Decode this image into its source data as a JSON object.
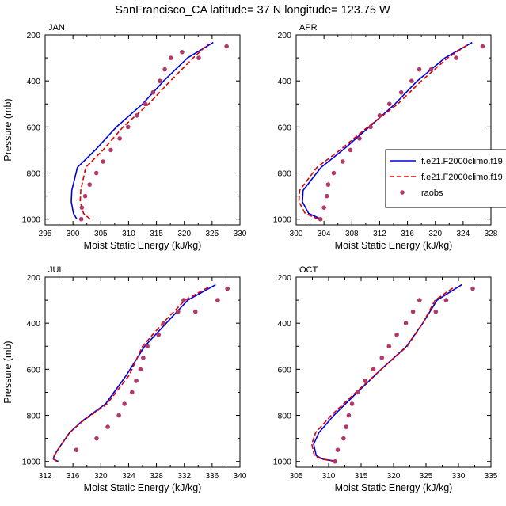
{
  "title": "SanFrancisco_CA  latitude= 37 N longitude= 123.75 W",
  "colors": {
    "model1": "#0000dd",
    "model2": "#dd0000",
    "raobs": "#b03a6a"
  },
  "legend": {
    "panel": 1,
    "placement": "right",
    "entries": [
      "f.e21.F2000climo.f19",
      "f.e21.F2000climo.f19",
      "raobs"
    ]
  },
  "chart_data": [
    {
      "type": "line",
      "panel_label": "JAN",
      "xlabel": "Moist Static Energy (kJ/kg)",
      "ylabel": "Pressure (mb)",
      "xlim": [
        295,
        330
      ],
      "xticks": [
        295,
        300,
        305,
        310,
        315,
        320,
        325,
        330
      ],
      "ylim": [
        1025,
        200
      ],
      "yticks": [
        200,
        400,
        600,
        800,
        1000
      ],
      "series": [
        {
          "style": "solid-blue",
          "x": [
            300.7,
            300.1,
            299.7,
            299.8,
            300.8,
            304.0,
            307.8,
            312.5,
            316.3,
            320.6,
            325.2
          ],
          "y": [
            1000,
            975,
            925,
            875,
            775,
            700,
            600,
            500,
            400,
            300,
            233
          ]
        },
        {
          "style": "dashed-red",
          "x": [
            303.1,
            301.9,
            301.3,
            301.4,
            302.3,
            305.4,
            309.0,
            313.6,
            317.5,
            321.6,
            324.3
          ],
          "y": [
            1000,
            975,
            925,
            875,
            775,
            700,
            600,
            500,
            400,
            300,
            240
          ]
        },
        {
          "style": "dots",
          "x": [
            301.5,
            301.6,
            302.2,
            303.0,
            304.2,
            305.4,
            306.8,
            308.4,
            309.9,
            311.5,
            313.0,
            314.4,
            315.6,
            316.5,
            317.6,
            319.6,
            322.6,
            327.6
          ],
          "y": [
            1000,
            950,
            900,
            850,
            800,
            750,
            700,
            650,
            600,
            550,
            500,
            450,
            400,
            350,
            300,
            275,
            300,
            250
          ]
        }
      ]
    },
    {
      "type": "line",
      "panel_label": "APR",
      "xlabel": "Moist Static Energy (kJ/kg)",
      "ylabel": "",
      "xlim": [
        300,
        328
      ],
      "xticks": [
        300,
        304,
        308,
        312,
        316,
        320,
        324,
        328
      ],
      "ylim": [
        1025,
        200
      ],
      "yticks": [
        200,
        400,
        600,
        800,
        1000
      ],
      "series": [
        {
          "style": "solid-blue",
          "x": [
            303.6,
            301.8,
            300.9,
            301.0,
            303.6,
            306.7,
            310.5,
            314.2,
            317.4,
            321.4,
            325.3
          ],
          "y": [
            1000,
            975,
            925,
            875,
            775,
            700,
            600,
            500,
            400,
            300,
            233
          ]
        },
        {
          "style": "dashed-red",
          "x": [
            303.2,
            301.3,
            300.4,
            300.5,
            303.0,
            306.3,
            310.3,
            314.6,
            318.0,
            321.8,
            324.8
          ],
          "y": [
            1000,
            975,
            925,
            875,
            775,
            700,
            600,
            500,
            400,
            300,
            240
          ]
        },
        {
          "style": "dots",
          "x": [
            303.5,
            304.0,
            304.4,
            304.6,
            305.4,
            306.7,
            307.8,
            309.1,
            310.7,
            312.0,
            313.4,
            315.1,
            316.6,
            317.7,
            319.4,
            323.0,
            326.8
          ],
          "y": [
            1000,
            950,
            900,
            850,
            800,
            750,
            700,
            650,
            600,
            550,
            500,
            450,
            400,
            350,
            350,
            300,
            250
          ]
        }
      ]
    },
    {
      "type": "line",
      "panel_label": "JUL",
      "xlabel": "Moist Static Energy (kJ/kg)",
      "ylabel": "Pressure (mb)",
      "xlim": [
        312,
        340
      ],
      "xticks": [
        312,
        316,
        320,
        324,
        328,
        332,
        336,
        340
      ],
      "ylim": [
        1025,
        200
      ],
      "yticks": [
        200,
        400,
        600,
        800,
        1000
      ],
      "series": [
        {
          "style": "solid-blue",
          "x": [
            313.9,
            313.2,
            313.3,
            313.8,
            315.5,
            317.3,
            320.7,
            323.7,
            326.3,
            329.4,
            332.5,
            336.5
          ],
          "y": [
            1000,
            990,
            975,
            950,
            875,
            825,
            750,
            625,
            500,
            400,
            300,
            233
          ]
        },
        {
          "style": "dashed-red",
          "x": [
            313.7,
            313.2,
            313.3,
            313.8,
            315.5,
            317.4,
            320.9,
            324.1,
            326.0,
            328.9,
            332.1,
            335.7
          ],
          "y": [
            1000,
            990,
            975,
            950,
            875,
            825,
            750,
            625,
            500,
            400,
            300,
            240
          ]
        },
        {
          "style": "dots",
          "x": [
            316.5,
            319.4,
            321.0,
            322.6,
            323.4,
            324.5,
            325.1,
            325.7,
            326.1,
            326.7,
            328.3,
            329.0,
            331.1,
            331.9,
            333.6,
            336.8,
            338.2
          ],
          "y": [
            950,
            900,
            850,
            800,
            750,
            700,
            650,
            600,
            550,
            500,
            450,
            400,
            350,
            300,
            350,
            300,
            250
          ]
        }
      ]
    },
    {
      "type": "line",
      "panel_label": "OCT",
      "xlabel": "Moist Static Energy (kJ/kg)",
      "ylabel": "",
      "xlim": [
        305,
        335
      ],
      "xticks": [
        305,
        310,
        315,
        320,
        325,
        330,
        335
      ],
      "ylim": [
        1025,
        200
      ],
      "yticks": [
        200,
        400,
        600,
        800,
        1000
      ],
      "series": [
        {
          "style": "solid-blue",
          "x": [
            311.3,
            309.1,
            308.1,
            307.7,
            308.5,
            310.8,
            314.4,
            318.1,
            322.0,
            324.5,
            326.7,
            330.5
          ],
          "y": [
            1000,
            990,
            975,
            925,
            875,
            800,
            700,
            600,
            500,
            400,
            300,
            233
          ]
        },
        {
          "style": "dashed-red",
          "x": [
            311.0,
            309.0,
            307.8,
            307.4,
            308.0,
            310.4,
            314.2,
            318.1,
            322.1,
            324.5,
            326.4,
            329.5
          ],
          "y": [
            1000,
            990,
            975,
            925,
            875,
            800,
            700,
            600,
            500,
            400,
            300,
            240
          ]
        },
        {
          "style": "dots",
          "x": [
            311.0,
            311.4,
            312.3,
            312.7,
            313.1,
            313.6,
            314.5,
            315.6,
            316.9,
            318.2,
            319.3,
            320.5,
            321.9,
            323.0,
            324.0,
            326.5,
            328.1,
            332.2
          ],
          "y": [
            1000,
            950,
            900,
            850,
            800,
            750,
            700,
            650,
            600,
            550,
            500,
            450,
            400,
            350,
            300,
            350,
            300,
            250
          ]
        }
      ]
    }
  ]
}
